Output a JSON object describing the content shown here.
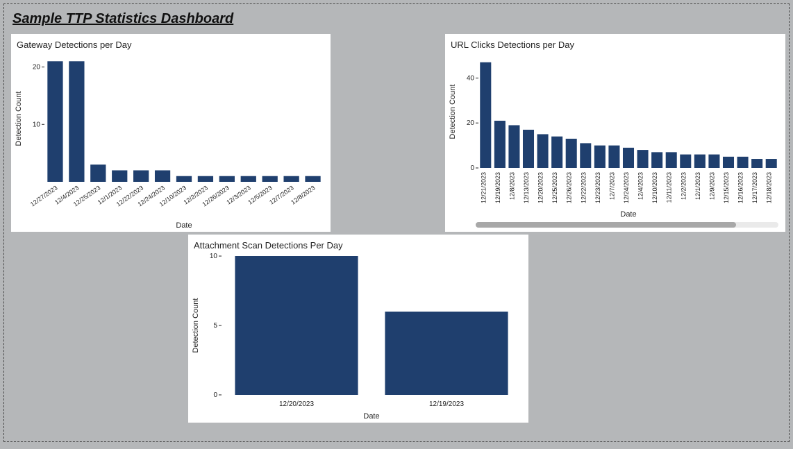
{
  "dashboard": {
    "title": "Sample TTP Statistics Dashboard",
    "background_color": "#b5b7b9",
    "panel_background": "#ffffff",
    "bar_color": "#1f3f6e",
    "axis_color": "#222222",
    "tick_font_size": 10,
    "axis_label_font_size": 11
  },
  "chart1": {
    "title": "Gateway Detections per Day",
    "type": "bar",
    "ylabel": "Detection Count",
    "xlabel": "Date",
    "ylim": [
      0,
      22
    ],
    "yticks": [
      10,
      20
    ],
    "bar_color": "#1f3f6e",
    "background_color": "#ffffff",
    "categories": [
      "12/27/2023",
      "12/4/2023",
      "12/25/2023",
      "12/1/2023",
      "12/22/2023",
      "12/24/2023",
      "12/10/2023",
      "12/2/2023",
      "12/26/2023",
      "12/3/2023",
      "12/5/2023",
      "12/7/2023",
      "12/8/2023"
    ],
    "values": [
      21,
      21,
      3,
      2,
      2,
      2,
      1,
      1,
      1,
      1,
      1,
      1,
      1
    ],
    "label_rotation": -35
  },
  "chart2": {
    "title": "URL Clicks Detections per Day",
    "type": "bar",
    "ylabel": "Detection Count",
    "xlabel": "Date",
    "ylim": [
      0,
      50
    ],
    "yticks": [
      0,
      20,
      40
    ],
    "bar_color": "#1f3f6e",
    "background_color": "#ffffff",
    "categories": [
      "12/21/2023",
      "12/19/2023",
      "12/8/2023",
      "12/13/2023",
      "12/20/2023",
      "12/25/2023",
      "12/26/2023",
      "12/22/2023",
      "12/23/2023",
      "12/7/2023",
      "12/24/2023",
      "12/4/2023",
      "12/10/2023",
      "12/11/2023",
      "12/2/2023",
      "12/1/2023",
      "12/9/2023",
      "12/15/2023",
      "12/16/2023",
      "12/17/2023",
      "12/18/2023"
    ],
    "values": [
      47,
      21,
      19,
      17,
      15,
      14,
      13,
      11,
      10,
      10,
      9,
      8,
      7,
      7,
      6,
      6,
      6,
      5,
      5,
      4,
      4
    ],
    "label_rotation": -90,
    "scrollbar": {
      "thumb_width_pct": 86
    }
  },
  "chart3": {
    "title": "Attachment Scan Detections Per Day",
    "type": "bar",
    "ylabel": "Detection Count",
    "xlabel": "Date",
    "ylim": [
      0,
      10
    ],
    "yticks": [
      0,
      5,
      10
    ],
    "bar_color": "#1f3f6e",
    "background_color": "#ffffff",
    "categories": [
      "12/20/2023",
      "12/19/2023"
    ],
    "values": [
      10,
      6
    ],
    "label_rotation": 0
  }
}
